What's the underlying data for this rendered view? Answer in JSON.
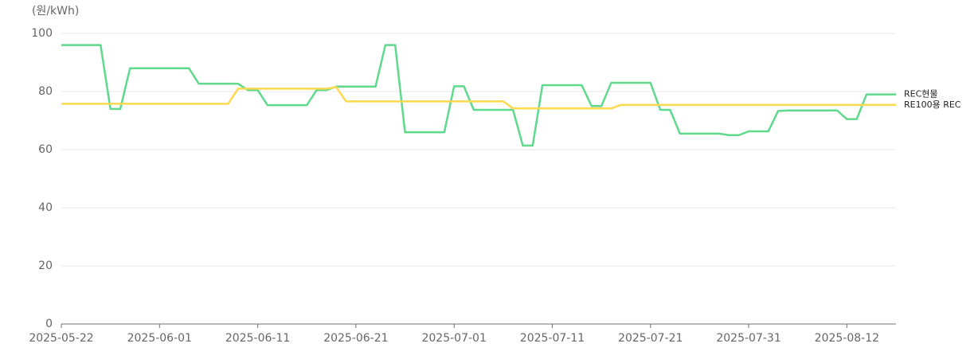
{
  "chart_data": {
    "type": "line",
    "y_label": "(원/kWh)",
    "categories": [
      "2025-05-22",
      null,
      null,
      null,
      null,
      null,
      null,
      null,
      null,
      null,
      "2025-06-01",
      null,
      null,
      null,
      null,
      null,
      null,
      null,
      null,
      null,
      "2025-06-11",
      null,
      null,
      null,
      null,
      null,
      null,
      null,
      null,
      null,
      "2025-06-21",
      null,
      null,
      null,
      null,
      null,
      null,
      null,
      null,
      null,
      "2025-07-01",
      null,
      null,
      null,
      null,
      null,
      null,
      null,
      null,
      null,
      "2025-07-11",
      null,
      null,
      null,
      null,
      null,
      null,
      null,
      null,
      null,
      "2025-07-21",
      null,
      null,
      null,
      null,
      null,
      null,
      null,
      null,
      null,
      "2025-07-31",
      null,
      null,
      null,
      null,
      null,
      null,
      null,
      null,
      null,
      "2025-08-12",
      null,
      null,
      null,
      null,
      null
    ],
    "series": [
      {
        "name": "REC현물",
        "color": "#5fd98b",
        "values": [
          96,
          96,
          96,
          96,
          96,
          74,
          74,
          88,
          88,
          88,
          88,
          88,
          88,
          88,
          82.7,
          82.7,
          82.7,
          82.7,
          82.7,
          80.5,
          80.5,
          75.3,
          75.3,
          75.3,
          75.3,
          75.3,
          80.5,
          80.5,
          81.7,
          81.7,
          81.7,
          81.7,
          81.7,
          96,
          96,
          66,
          66,
          66,
          66,
          66,
          81.8,
          81.8,
          73.7,
          73.7,
          73.7,
          73.7,
          73.7,
          61.4,
          61.4,
          82.2,
          82.2,
          82.2,
          82.2,
          82.2,
          75,
          75,
          83,
          83,
          83,
          83,
          83,
          73.7,
          73.7,
          65.5,
          65.5,
          65.5,
          65.5,
          65.5,
          65,
          65,
          66.3,
          66.3,
          66.3,
          73.3,
          73.5,
          73.5,
          73.5,
          73.5,
          73.5,
          73.5,
          70.5,
          70.5,
          79,
          79,
          79,
          79
        ]
      },
      {
        "name": "RE100용 REC",
        "color": "#fdd94f",
        "values": [
          75.8,
          75.8,
          75.8,
          75.8,
          75.8,
          75.8,
          75.8,
          75.8,
          75.8,
          75.8,
          75.8,
          75.8,
          75.8,
          75.8,
          75.8,
          75.8,
          75.8,
          75.8,
          81,
          81,
          81,
          81,
          81,
          81,
          81,
          81,
          81,
          81,
          81.5,
          76.6,
          76.6,
          76.6,
          76.6,
          76.6,
          76.6,
          76.6,
          76.6,
          76.6,
          76.6,
          76.6,
          76.6,
          76.6,
          76.6,
          76.6,
          76.6,
          76.6,
          74.2,
          74.2,
          74.2,
          74.2,
          74.2,
          74.2,
          74.2,
          74.2,
          74.2,
          74.2,
          74.2,
          75.4,
          75.4,
          75.4,
          75.4,
          75.4,
          75.4,
          75.4,
          75.4,
          75.4,
          75.4,
          75.4,
          75.4,
          75.4,
          75.4,
          75.4,
          75.4,
          75.4,
          75.4,
          75.4,
          75.4,
          75.4,
          75.4,
          75.4,
          75.4,
          75.4,
          75.4,
          75.4,
          75.4,
          75.4
        ]
      }
    ],
    "ylim": [
      0,
      100
    ],
    "yticks": [
      0,
      20,
      40,
      60,
      80,
      100
    ],
    "grid": true
  }
}
